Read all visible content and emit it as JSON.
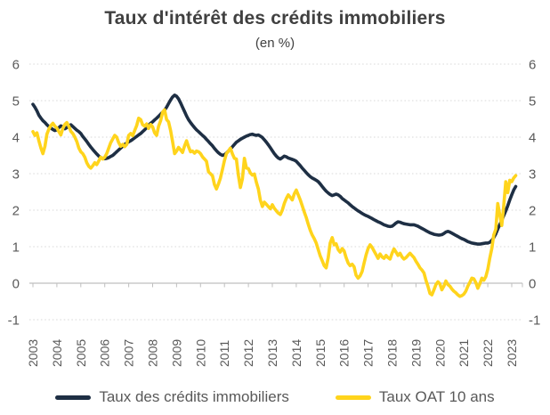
{
  "colors": {
    "background": "#ffffff",
    "title_text": "#404040",
    "axis_text": "#595959",
    "gridline": "#d9d9d9",
    "axis_line": "#bfbfbf",
    "series_credits": "#1e2f44",
    "series_oat": "#ffd41c"
  },
  "chart_data": {
    "type": "line",
    "title": "Taux d'intérêt des crédits immobiliers",
    "subtitle": "(en %)",
    "grid": {
      "horizontal": "dotted",
      "vertical": false
    },
    "legend_position": "bottom",
    "y_axis": {
      "range": [
        -1,
        6
      ],
      "ticks": [
        6,
        5,
        4,
        3,
        2,
        1,
        0,
        -1
      ],
      "label_sides": "both"
    },
    "x_axis": {
      "unit": "year",
      "points_per_year": 12,
      "tick_labels": [
        "2003",
        "2004",
        "2005",
        "2006",
        "2007",
        "2008",
        "2009",
        "2010",
        "2011",
        "2012",
        "2013",
        "2014",
        "2015",
        "2016",
        "2017",
        "2018",
        "2019",
        "2020",
        "2021",
        "2022",
        "2023"
      ]
    },
    "series": [
      {
        "name": "Taux des crédits immobiliers",
        "color": "#1e2f44",
        "start": "2003-01",
        "frequency": "monthly",
        "values": [
          4.9,
          4.82,
          4.72,
          4.6,
          4.52,
          4.45,
          4.4,
          4.34,
          4.29,
          4.25,
          4.21,
          4.18,
          4.2,
          4.26,
          4.31,
          4.28,
          4.23,
          4.26,
          4.31,
          4.34,
          4.29,
          4.24,
          4.19,
          4.15,
          4.1,
          4.02,
          3.95,
          3.88,
          3.8,
          3.73,
          3.66,
          3.6,
          3.54,
          3.48,
          3.44,
          3.42,
          3.41,
          3.42,
          3.44,
          3.47,
          3.5,
          3.55,
          3.6,
          3.65,
          3.7,
          3.75,
          3.8,
          3.84,
          3.87,
          3.9,
          3.94,
          3.98,
          4.02,
          4.06,
          4.1,
          4.15,
          4.2,
          4.26,
          4.32,
          4.38,
          4.42,
          4.47,
          4.52,
          4.57,
          4.63,
          4.68,
          4.74,
          4.82,
          4.92,
          5.02,
          5.1,
          5.15,
          5.12,
          5.05,
          4.94,
          4.82,
          4.7,
          4.58,
          4.48,
          4.4,
          4.33,
          4.26,
          4.2,
          4.15,
          4.1,
          4.05,
          4.0,
          3.94,
          3.88,
          3.82,
          3.76,
          3.69,
          3.63,
          3.57,
          3.53,
          3.5,
          3.52,
          3.56,
          3.62,
          3.68,
          3.74,
          3.8,
          3.86,
          3.9,
          3.94,
          3.97,
          4.0,
          4.03,
          4.05,
          4.07,
          4.08,
          4.06,
          4.05,
          4.06,
          4.03,
          3.99,
          3.93,
          3.86,
          3.79,
          3.71,
          3.63,
          3.55,
          3.48,
          3.43,
          3.4,
          3.44,
          3.48,
          3.46,
          3.43,
          3.41,
          3.39,
          3.37,
          3.34,
          3.28,
          3.22,
          3.15,
          3.09,
          3.03,
          2.97,
          2.92,
          2.88,
          2.85,
          2.82,
          2.78,
          2.72,
          2.65,
          2.58,
          2.52,
          2.47,
          2.43,
          2.4,
          2.42,
          2.44,
          2.42,
          2.38,
          2.32,
          2.28,
          2.24,
          2.2,
          2.15,
          2.1,
          2.06,
          2.02,
          1.98,
          1.95,
          1.91,
          1.88,
          1.85,
          1.83,
          1.8,
          1.77,
          1.74,
          1.71,
          1.68,
          1.66,
          1.63,
          1.6,
          1.58,
          1.56,
          1.55,
          1.56,
          1.6,
          1.65,
          1.68,
          1.67,
          1.65,
          1.63,
          1.62,
          1.61,
          1.6,
          1.6,
          1.6,
          1.58,
          1.56,
          1.53,
          1.5,
          1.47,
          1.44,
          1.41,
          1.38,
          1.36,
          1.34,
          1.33,
          1.32,
          1.32,
          1.33,
          1.36,
          1.4,
          1.42,
          1.4,
          1.37,
          1.34,
          1.31,
          1.28,
          1.25,
          1.22,
          1.2,
          1.17,
          1.14,
          1.12,
          1.1,
          1.09,
          1.08,
          1.07,
          1.07,
          1.08,
          1.09,
          1.1,
          1.1,
          1.12,
          1.17,
          1.25,
          1.35,
          1.48,
          1.6,
          1.72,
          1.85,
          1.98,
          2.12,
          2.28,
          2.42,
          2.55,
          2.65
        ]
      },
      {
        "name": "Taux OAT 10 ans",
        "color": "#ffd41c",
        "start": "2003-01",
        "frequency": "monthly",
        "values": [
          4.15,
          4.05,
          4.12,
          3.9,
          3.7,
          3.55,
          3.75,
          4.08,
          4.22,
          4.32,
          4.38,
          4.3,
          4.25,
          4.15,
          4.06,
          4.24,
          4.35,
          4.4,
          4.3,
          4.16,
          4.1,
          4.0,
          3.88,
          3.7,
          3.6,
          3.55,
          3.45,
          3.3,
          3.2,
          3.15,
          3.22,
          3.3,
          3.25,
          3.35,
          3.45,
          3.4,
          3.45,
          3.55,
          3.7,
          3.85,
          3.95,
          4.05,
          4.0,
          3.85,
          3.75,
          3.8,
          3.74,
          3.8,
          4.05,
          4.1,
          4.04,
          4.18,
          4.32,
          4.52,
          4.48,
          4.34,
          4.3,
          4.36,
          4.24,
          4.35,
          4.28,
          4.12,
          4.05,
          4.3,
          4.45,
          4.68,
          4.75,
          4.48,
          4.42,
          4.18,
          3.88,
          3.55,
          3.62,
          3.72,
          3.65,
          3.58,
          3.76,
          3.9,
          3.74,
          3.6,
          3.62,
          3.56,
          3.62,
          3.6,
          3.55,
          3.46,
          3.4,
          3.34,
          3.05,
          3.0,
          2.94,
          2.7,
          2.58,
          2.72,
          2.88,
          3.12,
          3.36,
          3.55,
          3.62,
          3.7,
          3.54,
          3.42,
          3.4,
          2.95,
          2.62,
          2.86,
          3.42,
          3.15,
          3.14,
          3.02,
          2.96,
          2.99,
          2.76,
          2.58,
          2.28,
          2.1,
          2.22,
          2.16,
          2.1,
          2.04,
          2.15,
          2.05,
          1.98,
          1.92,
          1.88,
          2.0,
          2.18,
          2.32,
          2.42,
          2.35,
          2.28,
          2.45,
          2.55,
          2.42,
          2.28,
          2.12,
          1.95,
          1.8,
          1.62,
          1.45,
          1.32,
          1.22,
          1.1,
          0.92,
          0.75,
          0.62,
          0.48,
          0.42,
          0.7,
          1.1,
          1.25,
          1.05,
          1.08,
          0.92,
          0.85,
          0.95,
          0.88,
          0.7,
          0.55,
          0.48,
          0.52,
          0.45,
          0.22,
          0.14,
          0.2,
          0.32,
          0.55,
          0.78,
          0.95,
          1.05,
          0.98,
          0.88,
          0.78,
          0.68,
          0.8,
          0.72,
          0.68,
          0.76,
          0.7,
          0.66,
          0.82,
          0.94,
          0.85,
          0.76,
          0.82,
          0.72,
          0.66,
          0.7,
          0.76,
          0.82,
          0.76,
          0.7,
          0.6,
          0.52,
          0.42,
          0.36,
          0.28,
          0.08,
          -0.08,
          -0.28,
          -0.32,
          -0.18,
          -0.04,
          0.04,
          -0.02,
          -0.18,
          -0.08,
          0.06,
          -0.04,
          -0.08,
          -0.16,
          -0.22,
          -0.26,
          -0.32,
          -0.36,
          -0.34,
          -0.3,
          -0.22,
          -0.08,
          0.02,
          0.14,
          0.12,
          0.02,
          -0.14,
          -0.02,
          0.14,
          0.08,
          0.18,
          0.38,
          0.68,
          0.95,
          1.32,
          1.48,
          2.18,
          1.88,
          1.58,
          2.12,
          2.78,
          2.48,
          2.82,
          2.78,
          2.88,
          2.95
        ]
      }
    ]
  }
}
